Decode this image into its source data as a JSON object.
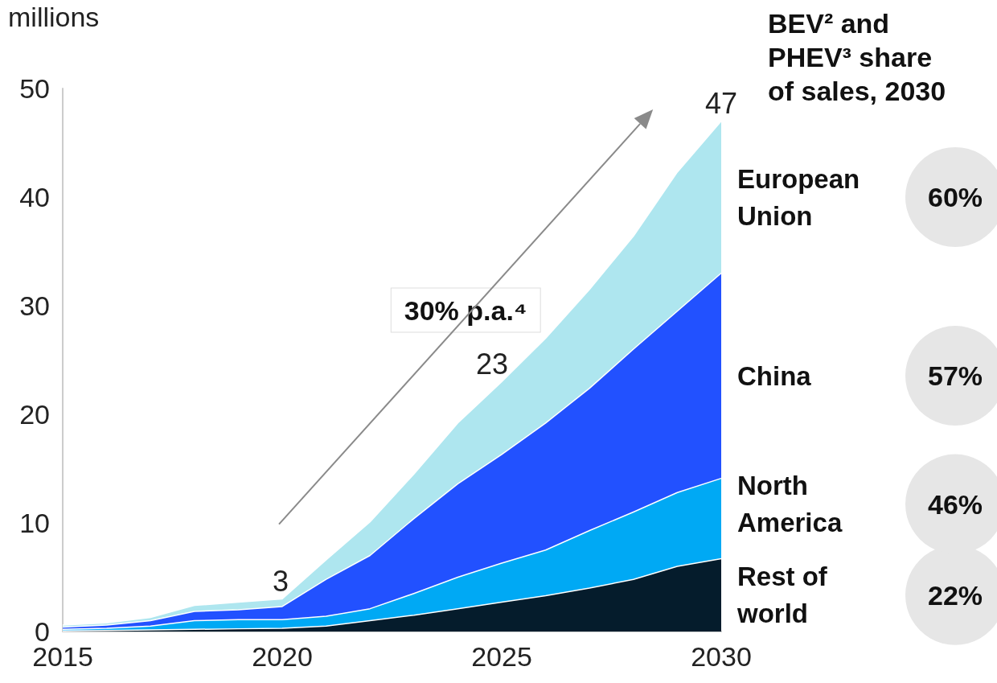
{
  "chart_data": {
    "type": "area",
    "stacked": true,
    "ylabel": "millions",
    "legend_title": "BEV² and PHEV³ share of sales, 2030",
    "x": [
      2015,
      2016,
      2017,
      2018,
      2019,
      2020,
      2021,
      2022,
      2023,
      2024,
      2025,
      2026,
      2027,
      2028,
      2029,
      2030
    ],
    "series": [
      {
        "name": "Rest of world",
        "color": "#051c2c",
        "values": [
          0.05,
          0.1,
          0.15,
          0.2,
          0.25,
          0.3,
          0.5,
          1.0,
          1.5,
          2.1,
          2.7,
          3.3,
          4.0,
          4.8,
          6.0,
          6.7
        ]
      },
      {
        "name": "North America",
        "color": "#00a9f4",
        "values": [
          0.15,
          0.2,
          0.35,
          0.8,
          0.85,
          0.8,
          0.9,
          1.1,
          2.0,
          2.9,
          3.6,
          4.2,
          5.3,
          6.2,
          6.8,
          7.4
        ]
      },
      {
        "name": "China",
        "color": "#2251ff",
        "values": [
          0.2,
          0.3,
          0.5,
          0.85,
          0.9,
          1.2,
          3.4,
          4.9,
          6.9,
          8.6,
          10.0,
          11.7,
          13.1,
          15.0,
          16.7,
          18.9
        ]
      },
      {
        "name": "European Union",
        "color": "#aee6ef",
        "values": [
          0.2,
          0.2,
          0.3,
          0.55,
          0.7,
          0.7,
          1.8,
          3.1,
          4.1,
          5.6,
          6.7,
          7.8,
          9.1,
          10.4,
          12.8,
          14.0
        ]
      }
    ],
    "xlim": [
      2015,
      2030
    ],
    "xticks": [
      2015,
      2020,
      2025,
      2030
    ],
    "ylim": [
      0,
      50
    ],
    "yticks": [
      0,
      10,
      20,
      30,
      40,
      50
    ],
    "grid": false,
    "legend": false,
    "totals": [
      null,
      null,
      null,
      null,
      null,
      "3",
      null,
      null,
      null,
      null,
      "23",
      null,
      null,
      null,
      null,
      "47"
    ],
    "annotations": [
      "30% p.a.⁴",
      "22%",
      "46%",
      "57%",
      "60%"
    ]
  }
}
